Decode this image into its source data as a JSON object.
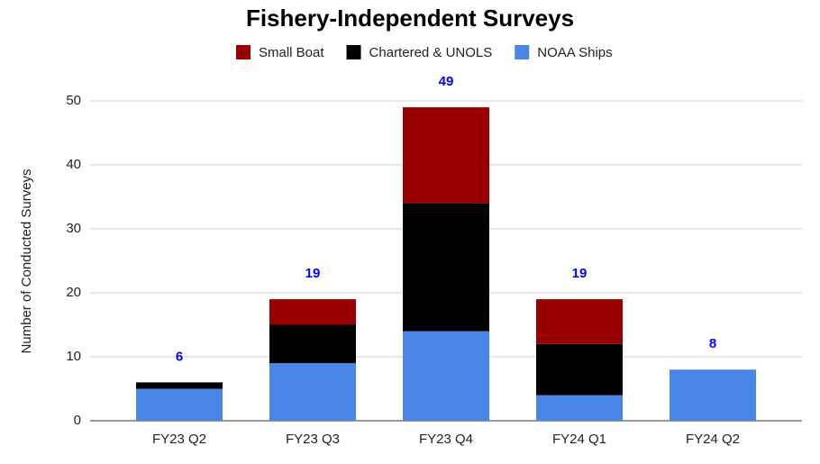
{
  "chart_data": {
    "type": "stacked_bar",
    "title": "Fishery-Independent Surveys",
    "y_label": "Number of Conducted Surveys",
    "categories": [
      "FY23 Q2",
      "FY23 Q3",
      "FY23 Q4",
      "FY24 Q1",
      "FY24 Q2"
    ],
    "series": [
      {
        "name": "Small Boat",
        "color": "#990000",
        "values": [
          0,
          4,
          15,
          7,
          0
        ]
      },
      {
        "name": "Chartered & UNOLS",
        "color": "#000000",
        "values": [
          1,
          6,
          20,
          8,
          0
        ]
      },
      {
        "name": "NOAA Ships",
        "color": "#4a86e8",
        "values": [
          5,
          9,
          14,
          4,
          8
        ]
      }
    ],
    "totals": [
      6,
      19,
      49,
      19,
      8
    ],
    "ylim": [
      0,
      50
    ],
    "yticks": [
      0,
      10,
      20,
      30,
      40,
      50
    ],
    "grid": true,
    "legend": "top"
  }
}
